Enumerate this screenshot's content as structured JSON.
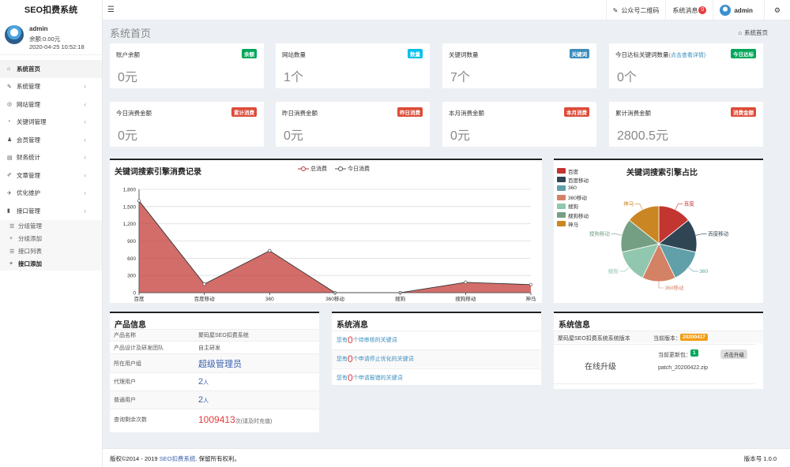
{
  "app": {
    "title": "SEO扣费系统"
  },
  "topbar": {
    "menu_icon": "hamburger-icon",
    "qrcode_label": "公众号二维码",
    "messages_label": "系统消息",
    "messages_count": "0",
    "user": "admin"
  },
  "sidebar": {
    "user": {
      "name": "admin",
      "balance": "余额:0.00元",
      "time": "2020-04-25 10:52:18"
    },
    "items": [
      {
        "label": "系统首页",
        "icon": "home-icon",
        "glyph": "⌂"
      },
      {
        "label": "系统管理",
        "icon": "wrench-icon",
        "glyph": "✎"
      },
      {
        "label": "网站管理",
        "icon": "globe-icon",
        "glyph": "◎"
      },
      {
        "label": "关键词管理",
        "icon": "pie-icon",
        "glyph": "◔"
      },
      {
        "label": "会员管理",
        "icon": "users-icon",
        "glyph": "♟"
      },
      {
        "label": "财务统计",
        "icon": "wallet-icon",
        "glyph": "▤"
      },
      {
        "label": "文章管理",
        "icon": "edit-icon",
        "glyph": "✐"
      },
      {
        "label": "优化维护",
        "icon": "gavel-icon",
        "glyph": "✈"
      },
      {
        "label": "接口管理",
        "icon": "book-icon",
        "glyph": "▮"
      }
    ],
    "subitems": [
      {
        "label": "分组管理",
        "icon": "list-icon",
        "glyph": "☰"
      },
      {
        "label": "分组添加",
        "icon": "plus-icon",
        "glyph": "+"
      },
      {
        "label": "接口列表",
        "icon": "list-icon",
        "glyph": "☰"
      },
      {
        "label": "接口添加",
        "icon": "plus-icon",
        "glyph": "+"
      }
    ]
  },
  "page": {
    "title": "系统首页",
    "breadcrumb": "系统首页"
  },
  "stats": [
    {
      "title": "账户余额",
      "tag": "余额",
      "tag_color": "#00a65a",
      "value": "0元"
    },
    {
      "title": "网站数量",
      "tag": "数量",
      "tag_color": "#00c0ef",
      "value": "1个"
    },
    {
      "title": "关键词数量",
      "tag": "关键词",
      "tag_color": "#3c8dbc",
      "value": "7个"
    },
    {
      "title": "今日达标关键词数量",
      "hint": "(点击查看详情)",
      "tag": "今日达标",
      "tag_color": "#00a65a",
      "value": "0个"
    },
    {
      "title": "今日消费金额",
      "tag": "累计消费",
      "tag_color": "#dd4b39",
      "value": "0元"
    },
    {
      "title": "昨日消费金额",
      "tag": "昨日消费",
      "tag_color": "#dd4b39",
      "value": "0元"
    },
    {
      "title": "本月消费金额",
      "tag": "本月消费",
      "tag_color": "#dd4b39",
      "value": "0元"
    },
    {
      "title": "累计消费金额",
      "tag": "消费金额",
      "tag_color": "#dd4b39",
      "value": "2800.5元"
    }
  ],
  "chart_data": [
    {
      "type": "area",
      "title": "关键词搜索引擎消费记录",
      "categories": [
        "百度",
        "百度移动",
        "360",
        "360移动",
        "搜狗",
        "搜狗移动",
        "神马"
      ],
      "series": [
        {
          "name": "总消费",
          "values": [
            1600,
            150,
            730,
            0,
            0,
            180,
            140
          ],
          "color": "#c23531"
        },
        {
          "name": "今日消费",
          "values": [
            0,
            0,
            0,
            0,
            0,
            0,
            0
          ],
          "color": "#555555"
        }
      ],
      "ylim": [
        0,
        1800
      ],
      "yticks": [
        0,
        300,
        600,
        900,
        1200,
        1500,
        1800
      ],
      "ytick_labels": [
        "0",
        "300",
        "600",
        "900",
        "1,200",
        "1,500",
        "1,800"
      ],
      "grid": true,
      "legend": "top-center"
    },
    {
      "type": "pie",
      "title": "关键词搜索引擎占比",
      "categories": [
        "百度",
        "百度移动",
        "360",
        "360移动",
        "搜狗",
        "搜狗移动",
        "神马"
      ],
      "values": [
        1,
        1,
        1,
        1,
        1,
        1,
        1
      ],
      "colors": [
        "#c23531",
        "#2f4554",
        "#61a0a8",
        "#d48265",
        "#91c7ae",
        "#749f83",
        "#ca8622"
      ],
      "legend": "left"
    }
  ],
  "product_info": {
    "title": "产品信息",
    "rows": [
      {
        "key": "产品名称",
        "value": "聚码屋SEO扣费系统"
      },
      {
        "key": "产品设计及研发团队",
        "value": "自主研发"
      },
      {
        "key": "所在用户组",
        "value": "超级管理员"
      },
      {
        "key": "代理用户",
        "value": "2",
        "unit": "人"
      },
      {
        "key": "普通用户",
        "value": "2",
        "unit": "人"
      },
      {
        "key": "查询剩余次数",
        "value": "1009413",
        "unit": "次(请及时充值)"
      }
    ]
  },
  "system_messages": {
    "title": "系统消息",
    "items": [
      {
        "prefix": "您有",
        "count": "0",
        "suffix": "个待审核的关键词"
      },
      {
        "prefix": "您有",
        "count": "0",
        "suffix": "个申请停止优化的关键词"
      },
      {
        "prefix": "您有",
        "count": "0",
        "suffix": "个申请报错的关键词"
      }
    ]
  },
  "system_info": {
    "title": "系统信息",
    "version_label": "聚码屋SEO扣费系统系统版本",
    "current_label": "当前版本：",
    "current_version": "20200417",
    "online_update": "在线升级",
    "patch_label": "当前更新包：",
    "patch_count": "1",
    "upgrade_button": "点击升级",
    "patch_file": "patch_20200422.zip"
  },
  "footer": {
    "copyright_pre": "版权©2014 - 2019 ",
    "copyright_brand": "SEO扣费系统",
    "copyright_post": ". 保留所有权利。",
    "version": "版本号 1.0.0"
  }
}
